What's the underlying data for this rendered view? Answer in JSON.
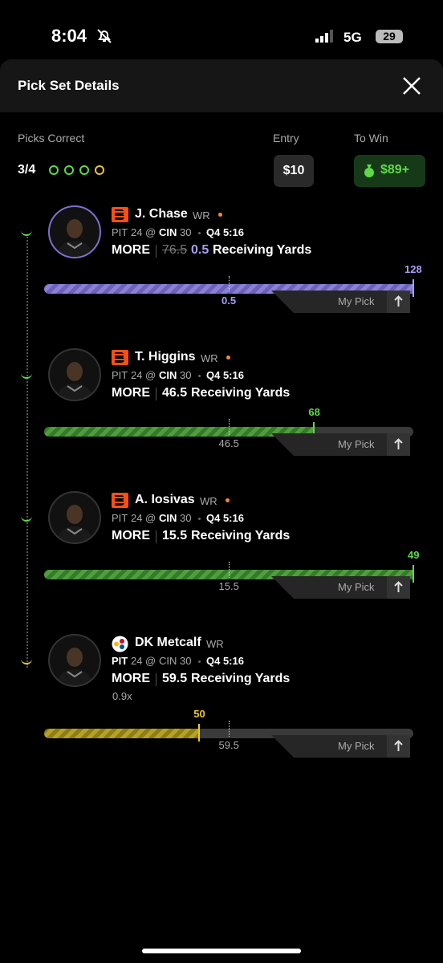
{
  "status_bar": {
    "time": "8:04",
    "network": "5G",
    "battery": "29"
  },
  "header": {
    "title": "Pick Set Details"
  },
  "summary": {
    "picks_correct_label": "Picks Correct",
    "picks_correct": "3/4",
    "entry_label": "Entry",
    "entry": "$10",
    "to_win_label": "To Win",
    "to_win": "$89+"
  },
  "picks": [
    {
      "name": "J. Chase",
      "position": "WR",
      "away_team": "PIT",
      "away_score": "24",
      "at": "@",
      "home_team": "CIN",
      "home_score": "30",
      "clock": "Q4 5:16",
      "team_side": "home",
      "direction": "MORE",
      "original_line": 76.5,
      "line": 0.5,
      "stat": "Receiving Yards",
      "actual": 128,
      "my_pick": "My Pick",
      "color": "purple"
    },
    {
      "name": "T. Higgins",
      "position": "WR",
      "away_team": "PIT",
      "away_score": "24",
      "at": "@",
      "home_team": "CIN",
      "home_score": "30",
      "clock": "Q4 5:16",
      "team_side": "home",
      "direction": "MORE",
      "line": 46.5,
      "stat": "Receiving Yards",
      "actual": 68,
      "my_pick": "My Pick",
      "color": "green"
    },
    {
      "name": "A. Iosivas",
      "position": "WR",
      "away_team": "PIT",
      "away_score": "24",
      "at": "@",
      "home_team": "CIN",
      "home_score": "30",
      "clock": "Q4 5:16",
      "team_side": "home",
      "direction": "MORE",
      "line": 15.5,
      "stat": "Receiving Yards",
      "actual": 49,
      "my_pick": "My Pick",
      "color": "green"
    },
    {
      "name": "DK Metcalf",
      "position": "WR",
      "away_team": "PIT",
      "away_score": "24",
      "at": "@",
      "home_team": "CIN",
      "home_score": "30",
      "clock": "Q4 5:16",
      "team_side": "away",
      "direction": "MORE",
      "line": 59.5,
      "stat": "Receiving Yards",
      "multiplier": "0.9x",
      "actual": 50,
      "my_pick": "My Pick",
      "color": "yellow"
    }
  ]
}
